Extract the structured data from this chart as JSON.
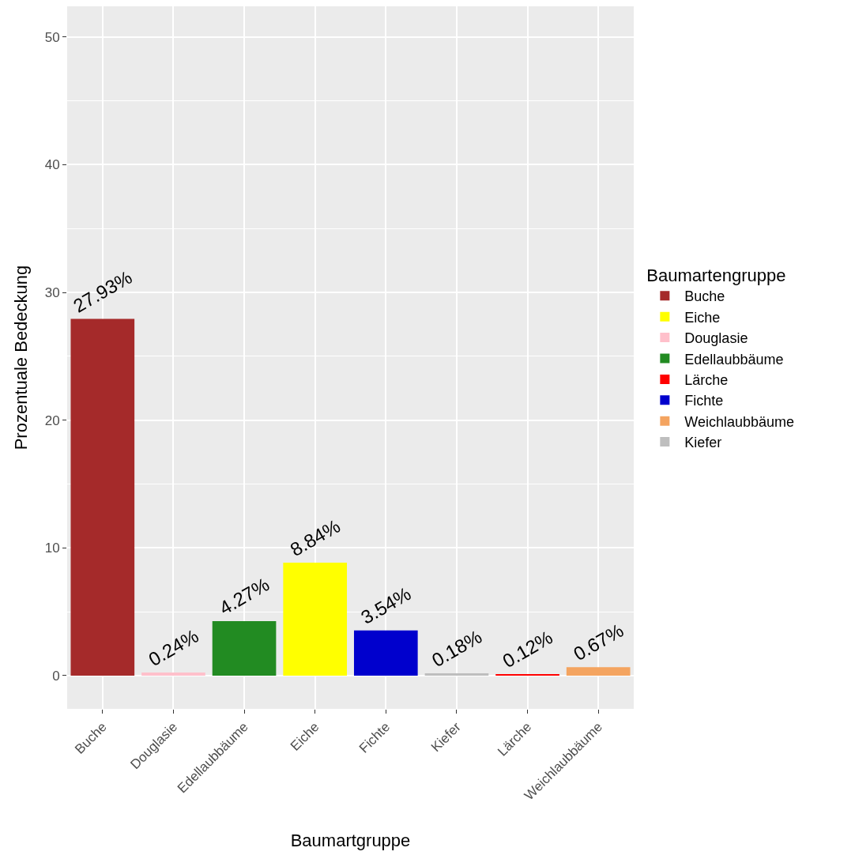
{
  "chart_data": {
    "type": "bar",
    "xlabel": "Baumartgruppe",
    "ylabel": "Prozentuale Bedeckung",
    "legend_title": "Baumartengruppe",
    "categories": [
      "Buche",
      "Douglasie",
      "Edellaubbäume",
      "Eiche",
      "Fichte",
      "Kiefer",
      "Lärche",
      "Weichlaubbäume"
    ],
    "series": [
      {
        "name": "Buche",
        "color": "#a52a2a",
        "values": [
          27.93,
          null,
          null,
          null,
          null,
          null,
          null,
          null
        ],
        "value_labels": [
          "27.93%",
          null,
          null,
          null,
          null,
          null,
          null,
          null
        ]
      },
      {
        "name": "Eiche",
        "color": "#ffff00",
        "values": [
          null,
          null,
          null,
          8.84,
          null,
          null,
          null,
          null
        ],
        "value_labels": [
          null,
          null,
          null,
          "8.84%",
          null,
          null,
          null,
          null
        ]
      },
      {
        "name": "Douglasie",
        "color": "#ffc0cb",
        "values": [
          null,
          0.24,
          null,
          null,
          null,
          null,
          null,
          null
        ],
        "value_labels": [
          null,
          "0.24%",
          null,
          null,
          null,
          null,
          null,
          null
        ]
      },
      {
        "name": "Edellaubbäume",
        "color": "#228b22",
        "values": [
          null,
          null,
          4.27,
          null,
          null,
          null,
          null,
          null
        ],
        "value_labels": [
          null,
          null,
          "4.27%",
          null,
          null,
          null,
          null,
          null
        ]
      },
      {
        "name": "Lärche",
        "color": "#ff0000",
        "values": [
          null,
          null,
          null,
          null,
          null,
          null,
          0.12,
          null
        ],
        "value_labels": [
          null,
          null,
          null,
          null,
          null,
          null,
          "0.12%",
          null
        ]
      },
      {
        "name": "Fichte",
        "color": "#0000cd",
        "values": [
          null,
          null,
          null,
          null,
          3.54,
          null,
          null,
          null
        ],
        "value_labels": [
          null,
          null,
          null,
          null,
          "3.54%",
          null,
          null,
          null
        ]
      },
      {
        "name": "Weichlaubbäume",
        "color": "#f4a460",
        "values": [
          null,
          null,
          null,
          null,
          null,
          null,
          null,
          0.67
        ],
        "value_labels": [
          null,
          null,
          null,
          null,
          null,
          null,
          null,
          "0.67%"
        ]
      },
      {
        "name": "Kiefer",
        "color": "#bebebe",
        "values": [
          null,
          null,
          null,
          null,
          null,
          0.18,
          null,
          null
        ],
        "value_labels": [
          null,
          null,
          null,
          null,
          null,
          "0.18%",
          null,
          null
        ]
      }
    ],
    "ylim": [
      -2.6,
      52.4
    ],
    "yticks": [
      0,
      10,
      20,
      30,
      40,
      50
    ],
    "grid": true,
    "legend": "right"
  }
}
